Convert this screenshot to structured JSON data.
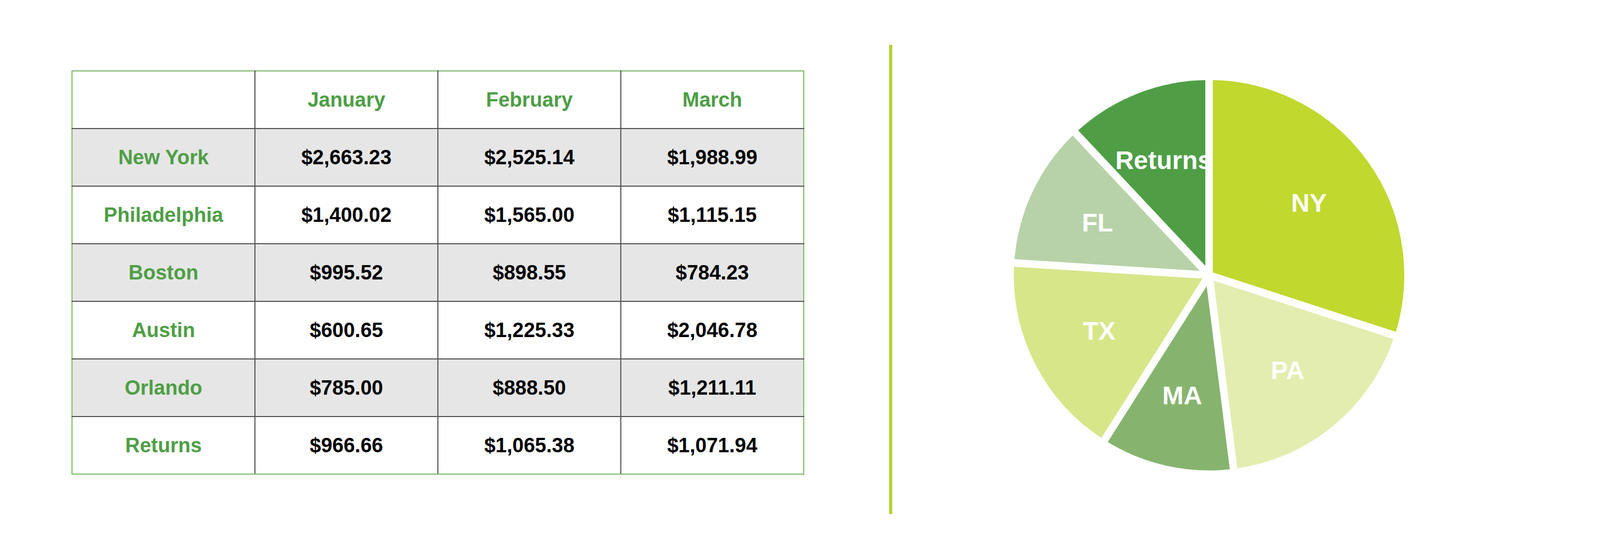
{
  "table": {
    "columns": [
      "January",
      "February",
      "March"
    ],
    "rows": [
      [
        "New York",
        "$2,663.23",
        "$2,525.14",
        "$1,988.99"
      ],
      [
        "Philadelphia",
        "$1,400.02",
        "$1,565.00",
        "$1,115.15"
      ],
      [
        "Boston",
        "$995.52",
        "$898.55",
        "$784.23"
      ],
      [
        "Austin",
        "$600.65",
        "$1,225.33",
        "$2,046.78"
      ],
      [
        "Orlando",
        "$785.00",
        "$888.50",
        "$1,211.11"
      ],
      [
        "Returns",
        "$966.66",
        "$1,065.38",
        "$1,071.94"
      ]
    ]
  },
  "chart_data": {
    "type": "pie",
    "categories": [
      "NY",
      "PA",
      "MA",
      "TX",
      "FL",
      "Returns"
    ],
    "values": [
      30,
      18,
      11,
      17,
      12,
      12
    ],
    "colors": [
      "#c1d82f",
      "#e3edb0",
      "#86b46f",
      "#d8e68a",
      "#b7d2a8",
      "#4f9e45"
    ],
    "data_labels": false
  }
}
